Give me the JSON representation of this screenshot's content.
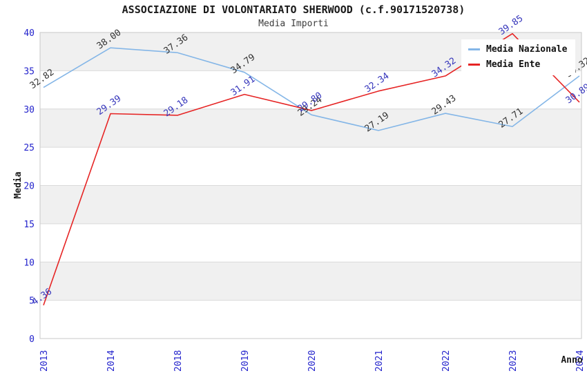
{
  "header": {
    "title": "ASSOCIAZIONE DI VOLONTARIATO SHERWOOD (c.f.90171520738)",
    "subtitle": "Media Importi"
  },
  "chart_data": {
    "type": "line",
    "title": "ASSOCIAZIONE DI VOLONTARIATO SHERWOOD (c.f.90171520738)",
    "subtitle": "Media Importi",
    "xlabel": "Anno",
    "ylabel": "Media",
    "categories": [
      "2013",
      "2014",
      "2018",
      "2019",
      "2020",
      "2021",
      "2022",
      "2023",
      "2024"
    ],
    "series": [
      {
        "name": "Media Nazionale",
        "color": "#84b6e7",
        "label_color": "#333333",
        "values": [
          32.82,
          38.0,
          37.36,
          34.79,
          29.24,
          27.19,
          29.43,
          27.71,
          34.32
        ]
      },
      {
        "name": "Media Ente",
        "color": "#e62424",
        "label_color": "#3434bb",
        "values": [
          4.36,
          29.39,
          29.18,
          31.91,
          29.8,
          32.34,
          34.32,
          39.85,
          30.89
        ]
      }
    ],
    "ylim": [
      0,
      40
    ],
    "ytick_step": 5,
    "y_ticks": [
      0,
      5,
      10,
      15,
      20,
      25,
      30,
      35,
      40
    ],
    "grid": true,
    "legend_position": "top-right",
    "label_decimals": 2,
    "colors": {
      "tick_label": "#2323cc",
      "grid_line": "#d9d9d9",
      "plot_border": "#c9c9c9",
      "band_even": "#ffffff",
      "band_odd": "#f0f0f0",
      "axis_title": "#1a1a1a"
    }
  }
}
